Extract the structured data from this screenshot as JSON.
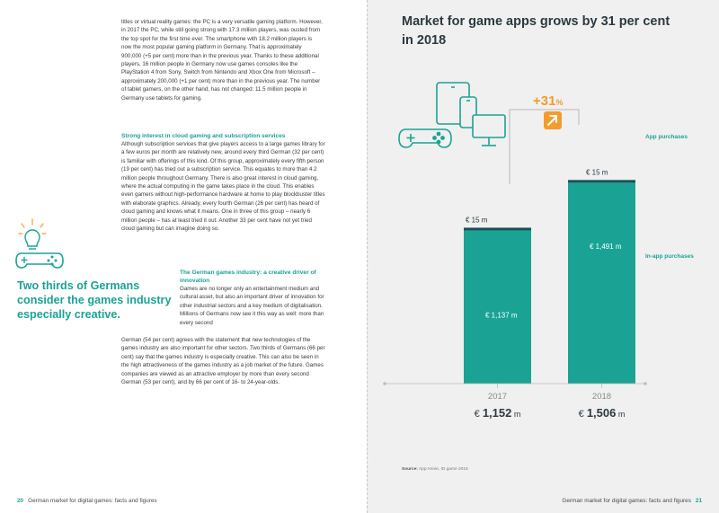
{
  "left_page": {
    "para1": "titles or virtual reality games: the PC is a very versatile gaming platform. However, in 2017 the PC, while still going strong with 17.3 million players, was ousted from the top spot for the first time ever. The smartphone with 18.2 million players is now the most popular gaming platform in Germany. That is approximately 900,000 (+5 per cent) more than in the previous year. Thanks to these additional players, 16 million people in Germany now use games consoles like the PlayStation 4 from Sony, Switch from Nintendo and Xbox One from Microsoft – approximately 200,000 (+1 per cent) more than in the previous year. The number of tablet gamers, on the other hand, has not changed: 11.5 million people in Germany use tablets for gaming.",
    "heading2": "Strong interest in cloud gaming and subscription services",
    "para2": "Although subscription services that give players access to a large games library for a few euros per month are relatively new, around every third German (32 per cent) is familiar with offerings of this kind. Of this group, approximately every fifth person (19 per cent) has tried out a subscription service. This equates to more than 4.2 million people throughout Germany. There is also great interest in cloud gaming, where the actual computing in the game takes place in the cloud. This enables even gamers without high-performance hardware at home to play blockbuster titles with elaborate graphics. Already, every fourth German (26 per cent) has heard of cloud gaming and knows what it means. One in three of this group – nearly 6 million people – has at least tried it out. Another 33 per cent have not yet tried cloud gaming but can imagine doing so.",
    "heading3": "The German games industry: a creative driver of innovation",
    "para3": "Games are no longer only an entertainment medium and cultural asset, but also an important driver of innovation for other industrial sectors and a key medium of digitalisation. Millions of Germans now see it this way as well: more than every second",
    "para4": "German (54 per cent) agrees with the statement that new technologies of the games industry are also important for other sectors. Two thirds of Germans (66 per cent) say that the games industry is especially creative. This can also be seen in the high attractiveness of the games industry as a job market of the future. Games companies are viewed as an attractive employer by more than every second German (53 per cent), and by 66 per cent of 16- to 24-year-olds.",
    "pull_quote": "Two thirds of Germans consider the games industry especially creative.",
    "footer_num": "20",
    "footer_text": "German market for digital games: facts and figures"
  },
  "right_page": {
    "footer_num": "21",
    "footer_text": "German market for digital games: facts and figures",
    "source_label": "Source:",
    "source_text": "App Annie, ID game 2018"
  },
  "colors": {
    "teal": "#1aa394",
    "dark_teal": "#16505a",
    "orange": "#f39c2c",
    "text": "#2c3a40"
  },
  "icons": [
    "lightbulb-gamepad-icon",
    "gamepad-icon",
    "tablet-icon",
    "smartphone-icon",
    "monitor-icon",
    "growth-arrow-icon"
  ],
  "chart_data": {
    "type": "bar",
    "title": "Market for game apps grows by 31 per cent in 2018",
    "categories": [
      "2017",
      "2018"
    ],
    "series": [
      {
        "name": "In-app purchases",
        "values": [
          1137,
          1491
        ],
        "labels": [
          "€ 1,137 m",
          "€ 1,491 m"
        ]
      },
      {
        "name": "App purchases",
        "values": [
          15,
          15
        ],
        "labels": [
          "€ 15 m",
          "€ 15 m"
        ]
      }
    ],
    "totals": [
      1152,
      1506
    ],
    "total_labels": [
      {
        "prefix": "€ ",
        "value": "1,152",
        "unit": " m"
      },
      {
        "prefix": "€ ",
        "value": "1,506",
        "unit": " m"
      }
    ],
    "growth_label": "+31%",
    "growth_value": "+31",
    "growth_unit": "%",
    "legend": [
      "App purchases",
      "In-app purchases"
    ],
    "unit": "€ m",
    "ylim": [
      0,
      1600
    ]
  }
}
